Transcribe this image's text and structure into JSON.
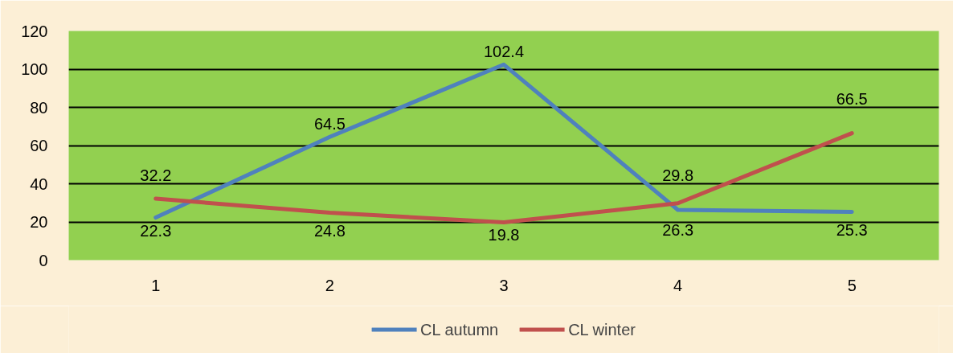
{
  "chart_data": {
    "type": "line",
    "categories": [
      "1",
      "2",
      "3",
      "4",
      "5"
    ],
    "series": [
      {
        "name": "CL autumn",
        "color": "#4f81bd",
        "values": [
          22.3,
          64.5,
          102.4,
          26.3,
          25.3
        ]
      },
      {
        "name": "CL winter",
        "color": "#c0504d",
        "values": [
          32.2,
          24.8,
          19.8,
          29.8,
          66.5
        ]
      }
    ],
    "ylim": [
      0,
      120
    ],
    "yticks": [
      0,
      20,
      40,
      60,
      80,
      100,
      120
    ],
    "grid": "y",
    "legend": "bottom",
    "data_labels": true
  }
}
